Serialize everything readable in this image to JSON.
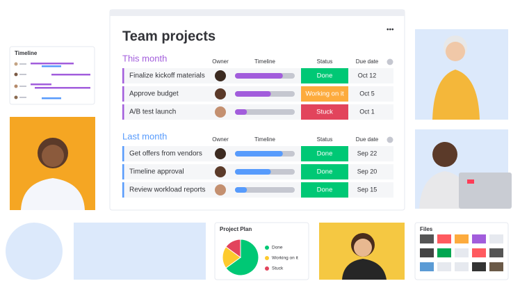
{
  "board": {
    "title": "Team projects",
    "groups": [
      {
        "name": "This month",
        "color": "#a25ddc",
        "columns": [
          "Owner",
          "Timeline",
          "Status",
          "Due date"
        ],
        "rows": [
          {
            "name": "Finalize kickoff materials",
            "progress": 80,
            "status": "Done",
            "status_color": "#00c875",
            "due": "Oct 12"
          },
          {
            "name": "Approve budget",
            "progress": 60,
            "status": "Working on it",
            "status_color": "#fdab3d",
            "due": "Oct 5"
          },
          {
            "name": "A/B test launch",
            "progress": 20,
            "status": "Stuck",
            "status_color": "#e2445c",
            "due": "Oct 1"
          }
        ]
      },
      {
        "name": "Last month",
        "color": "#579bfc",
        "columns": [
          "Owner",
          "Timeline",
          "Status",
          "Due date"
        ],
        "rows": [
          {
            "name": "Get offers from vendors",
            "progress": 80,
            "status": "Done",
            "status_color": "#00c875",
            "due": "Sep 22"
          },
          {
            "name": "Timeline approval",
            "progress": 60,
            "status": "Done",
            "status_color": "#00c875",
            "due": "Sep 20"
          },
          {
            "name": "Review workload reports",
            "progress": 20,
            "status": "Done",
            "status_color": "#00c875",
            "due": "Sep 15"
          }
        ]
      }
    ]
  },
  "timeline_card": {
    "title": "Timeline"
  },
  "project_plan": {
    "title": "Project Plan",
    "chart_data": {
      "type": "pie",
      "categories": [
        "Done",
        "Working on it",
        "Stuck"
      ],
      "values": [
        65,
        20,
        15
      ],
      "colors": [
        "#00c875",
        "#fdca2e",
        "#e2445c"
      ]
    }
  },
  "files_card": {
    "title": "Files"
  }
}
